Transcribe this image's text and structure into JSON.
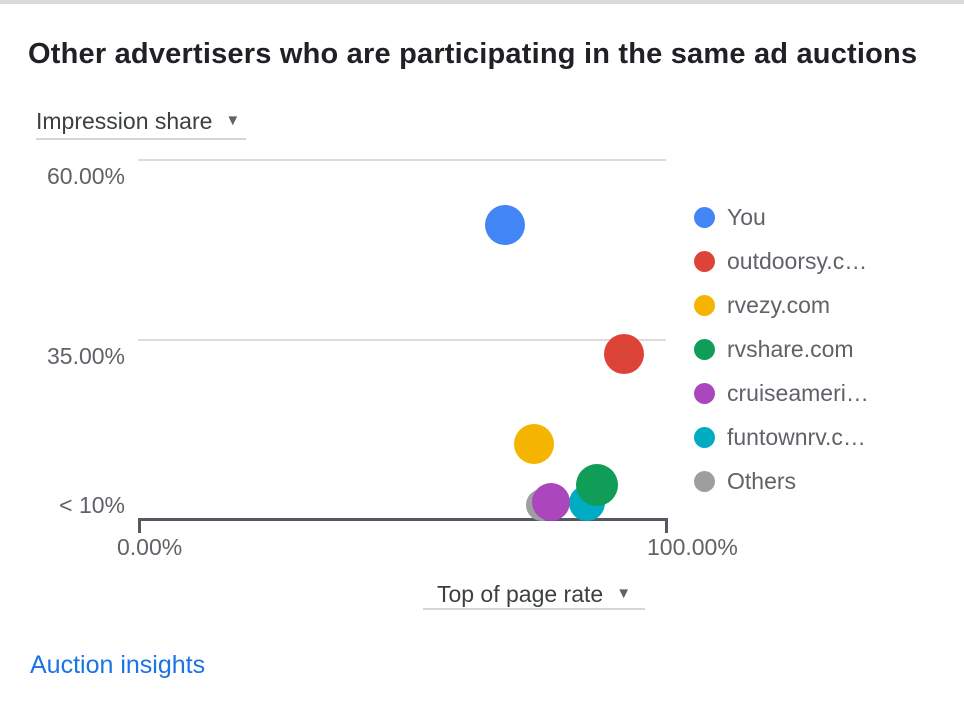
{
  "title": "Other advertisers who are participating in the same ad auctions",
  "controls": {
    "y_metric": {
      "label": "Impression share",
      "caret": "▼"
    },
    "x_metric": {
      "label": "Top of page rate",
      "caret": "▼"
    }
  },
  "footer": {
    "link_label": "Auction insights"
  },
  "colors": {
    "you_blue": "#4285F4",
    "red": "#DB4437",
    "yellow": "#F4B400",
    "green": "#0F9D58",
    "purple": "#AB47BC",
    "teal": "#00ACC1",
    "gray": "#9E9E9E",
    "link_blue": "#1a73e8"
  },
  "chart_data": {
    "type": "scatter",
    "title": "Other advertisers who are participating in the same ad auctions",
    "xlabel": "Top of page rate",
    "ylabel": "Impression share",
    "x_range": [
      0,
      100
    ],
    "y_range": [
      10,
      60
    ],
    "grid": "horizontal-only",
    "legend_position": "right",
    "y_ticks": [
      {
        "label": "60.00%",
        "value": 60,
        "gridline": true
      },
      {
        "label": "35.00%",
        "value": 35,
        "gridline": true
      },
      {
        "label": "< 10%",
        "value": 10,
        "baseline": true
      }
    ],
    "x_ticks": [
      {
        "label": "0.00%",
        "value": 0
      },
      {
        "label": "100.00%",
        "value": 100
      }
    ],
    "series": [
      {
        "name": "You",
        "color": "#4285F4",
        "top_of_page_rate": 69.5,
        "impression_share": 51.0,
        "r": 20
      },
      {
        "name": "outdoorsy.c…",
        "color": "#DB4437",
        "top_of_page_rate": 92.0,
        "impression_share": 33.0,
        "r": 20
      },
      {
        "name": "rvezy.com",
        "color": "#F4B400",
        "top_of_page_rate": 75.0,
        "impression_share": 20.5,
        "r": 20
      },
      {
        "name": "rvshare.com",
        "color": "#0F9D58",
        "top_of_page_rate": 87.0,
        "impression_share": 14.8,
        "r": 21
      },
      {
        "name": "cruiseameri…",
        "color": "#AB47BC",
        "top_of_page_rate": 78.2,
        "impression_share": 12.0,
        "r": 19
      },
      {
        "name": "funtownrv.c…",
        "color": "#00ACC1",
        "top_of_page_rate": 85.0,
        "impression_share": 11.7,
        "r": 18
      },
      {
        "name": "Others",
        "color": "#9E9E9E",
        "top_of_page_rate": 76.5,
        "impression_share": 11.3,
        "r": 16
      }
    ]
  }
}
